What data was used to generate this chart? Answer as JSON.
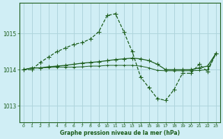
{
  "title": "Graphe pression niveau de la mer (hPa)",
  "bg_color": "#d0eef5",
  "grid_color": "#aed4dc",
  "line_color": "#1a5c1a",
  "yticks": [
    1013,
    1014,
    1015
  ],
  "ylim": [
    1012.55,
    1015.85
  ],
  "xlim": [
    -0.5,
    23.5
  ],
  "xticks": [
    0,
    1,
    2,
    3,
    4,
    5,
    6,
    7,
    8,
    9,
    10,
    11,
    12,
    13,
    14,
    15,
    16,
    17,
    18,
    19,
    20,
    21,
    22,
    23
  ],
  "s1_x": [
    0,
    1,
    2,
    3,
    4,
    5,
    6,
    7,
    8,
    9,
    10,
    11,
    12,
    13,
    14,
    15,
    16,
    17,
    18,
    19,
    20,
    21,
    22,
    23
  ],
  "s1_y": [
    1014.0,
    1014.0,
    1014.2,
    1014.35,
    1014.5,
    1014.6,
    1014.7,
    1014.75,
    1014.85,
    1015.05,
    1015.5,
    1015.55,
    1015.05,
    1014.5,
    1013.8,
    1013.5,
    1013.2,
    1013.15,
    1013.45,
    1013.9,
    1013.9,
    1014.15,
    1013.95,
    1014.45
  ],
  "s2_x": [
    0,
    1,
    2,
    3,
    4,
    5,
    6,
    7,
    8,
    9,
    10,
    11,
    12,
    13,
    14,
    15,
    16,
    17,
    18,
    19,
    20,
    21,
    22,
    23
  ],
  "s2_y": [
    1014.0,
    1014.05,
    1014.05,
    1014.08,
    1014.1,
    1014.12,
    1014.15,
    1014.18,
    1014.2,
    1014.22,
    1014.25,
    1014.28,
    1014.3,
    1014.32,
    1014.3,
    1014.25,
    1014.15,
    1014.0,
    1014.0,
    1014.0,
    1014.0,
    1014.05,
    1014.1,
    1014.45
  ],
  "s3_x": [
    0,
    1,
    2,
    3,
    4,
    5,
    6,
    7,
    8,
    9,
    10,
    11,
    12,
    13,
    14,
    15,
    16,
    17,
    18,
    19,
    20,
    21,
    22,
    23
  ],
  "s3_y": [
    1014.0,
    1014.05,
    1014.05,
    1014.06,
    1014.07,
    1014.07,
    1014.07,
    1014.08,
    1014.1,
    1014.1,
    1014.12,
    1014.12,
    1014.12,
    1014.12,
    1014.1,
    1014.05,
    1013.98,
    1013.97,
    1013.97,
    1013.97,
    1013.97,
    1013.98,
    1014.0,
    1014.45
  ]
}
